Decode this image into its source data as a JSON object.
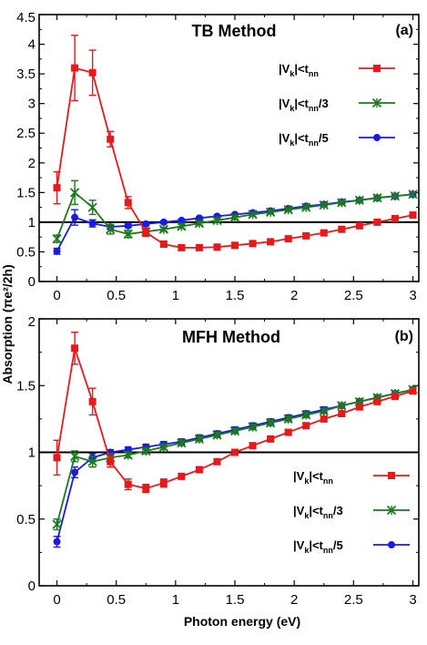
{
  "figure": {
    "ylabel": "Absorption (πe²/2h)",
    "xlabel": "Photon energy (eV)"
  },
  "chart_data": [
    {
      "type": "line",
      "panel": "(a)",
      "title": "TB Method",
      "xlim": [
        -0.15,
        3.05
      ],
      "ylim": [
        0,
        4.5
      ],
      "x_ticks": [
        0,
        0.5,
        1,
        1.5,
        2,
        2.5,
        3
      ],
      "x_tick_labels": [
        "0",
        "0.5",
        "1",
        "1.5",
        "2",
        "2.5",
        "3"
      ],
      "y_ticks": [
        0,
        0.5,
        1,
        1.5,
        2,
        2.5,
        3,
        3.5,
        4,
        4.5
      ],
      "y_tick_labels": [
        "0",
        "0.5",
        "1",
        "1.5",
        "2",
        "2.5",
        "3",
        "3.5",
        "4",
        "4.5"
      ],
      "reference_line": 1,
      "legend_position": "upper-right",
      "series": [
        {
          "name": "|V_k|<t_nn",
          "legend": {
            "main": "|V",
            "sub1": "k",
            "mid": "|<t",
            "sub2": "nn",
            "tail": ""
          },
          "color": "#e8191b",
          "marker": "square",
          "x": [
            0,
            0.15,
            0.3,
            0.45,
            0.6,
            0.75,
            0.9,
            1.05,
            1.2,
            1.35,
            1.5,
            1.65,
            1.8,
            1.95,
            2.1,
            2.25,
            2.4,
            2.55,
            2.7,
            2.85,
            3.0
          ],
          "y": [
            1.58,
            3.6,
            3.52,
            2.4,
            1.33,
            0.83,
            0.63,
            0.57,
            0.57,
            0.58,
            0.61,
            0.64,
            0.67,
            0.72,
            0.77,
            0.82,
            0.88,
            0.94,
            1.0,
            1.06,
            1.12
          ],
          "err": [
            0.27,
            0.55,
            0.38,
            0.13,
            0.1,
            0.07,
            0.05,
            0.04,
            0.04,
            0.04,
            0.04,
            0.04,
            0.04,
            0.04,
            0.04,
            0.04,
            0.04,
            0.04,
            0.04,
            0.04,
            0.04
          ]
        },
        {
          "name": "|V_k|<t_nn/3",
          "legend": {
            "main": "|V",
            "sub1": "k",
            "mid": "|<t",
            "sub2": "nn",
            "tail": "/3"
          },
          "color": "#1c7a1c",
          "marker": "x",
          "x": [
            0,
            0.15,
            0.3,
            0.45,
            0.6,
            0.75,
            0.9,
            1.05,
            1.2,
            1.35,
            1.5,
            1.65,
            1.8,
            1.95,
            2.1,
            2.25,
            2.4,
            2.55,
            2.7,
            2.85,
            3.0
          ],
          "y": [
            0.72,
            1.5,
            1.25,
            0.88,
            0.8,
            0.84,
            0.88,
            0.93,
            0.98,
            1.03,
            1.08,
            1.13,
            1.17,
            1.21,
            1.25,
            1.29,
            1.33,
            1.37,
            1.41,
            1.44,
            1.47
          ],
          "err": [
            0.06,
            0.2,
            0.12,
            0.08,
            0.06,
            0.04,
            0.03,
            0.03,
            0.03,
            0.03,
            0.03,
            0.03,
            0.03,
            0.03,
            0.03,
            0.03,
            0.03,
            0.03,
            0.03,
            0.03,
            0.03
          ]
        },
        {
          "name": "|V_k|<t_nn/5",
          "legend": {
            "main": "|V",
            "sub1": "k",
            "mid": "|<t",
            "sub2": "nn",
            "tail": "/5"
          },
          "color": "#1a1ae6",
          "marker": "circle",
          "x": [
            0,
            0.15,
            0.3,
            0.45,
            0.6,
            0.75,
            0.9,
            1.05,
            1.2,
            1.35,
            1.5,
            1.65,
            1.8,
            1.95,
            2.1,
            2.25,
            2.4,
            2.55,
            2.7,
            2.85,
            3.0
          ],
          "y": [
            0.51,
            1.08,
            0.98,
            0.92,
            0.94,
            0.97,
            1.0,
            1.03,
            1.07,
            1.1,
            1.13,
            1.16,
            1.19,
            1.23,
            1.27,
            1.3,
            1.34,
            1.37,
            1.41,
            1.44,
            1.47
          ],
          "err": [
            0.05,
            0.13,
            0.06,
            0.04,
            0.03,
            0.03,
            0.02,
            0.02,
            0.02,
            0.02,
            0.02,
            0.02,
            0.02,
            0.02,
            0.02,
            0.02,
            0.02,
            0.02,
            0.02,
            0.02,
            0.02
          ]
        }
      ]
    },
    {
      "type": "line",
      "panel": "(b)",
      "title": "MFH Method",
      "xlim": [
        -0.15,
        3.05
      ],
      "ylim": [
        0,
        2
      ],
      "x_ticks": [
        0,
        0.5,
        1,
        1.5,
        2,
        2.5,
        3
      ],
      "x_tick_labels": [
        "0",
        "0.5",
        "1",
        "1.5",
        "2",
        "2.5",
        "3"
      ],
      "y_ticks": [
        0,
        0.5,
        1,
        1.5,
        2
      ],
      "y_tick_labels": [
        "0",
        "0.5",
        "1",
        "1.5",
        "2"
      ],
      "reference_line": 1,
      "legend_position": "lower-right",
      "series": [
        {
          "name": "|V_k|<t_nn",
          "legend": {
            "main": "|V",
            "sub1": "k",
            "mid": "|<t",
            "sub2": "nn",
            "tail": ""
          },
          "color": "#e8191b",
          "marker": "square",
          "x": [
            0,
            0.15,
            0.3,
            0.45,
            0.6,
            0.75,
            0.9,
            1.05,
            1.2,
            1.35,
            1.5,
            1.65,
            1.8,
            1.95,
            2.1,
            2.25,
            2.4,
            2.55,
            2.7,
            2.85,
            3.0
          ],
          "y": [
            0.96,
            1.78,
            1.38,
            0.93,
            0.76,
            0.73,
            0.77,
            0.82,
            0.87,
            0.93,
            1.0,
            1.05,
            1.1,
            1.15,
            1.2,
            1.25,
            1.29,
            1.34,
            1.38,
            1.42,
            1.46
          ],
          "err": [
            0.13,
            0.12,
            0.1,
            0.04,
            0.04,
            0.03,
            0.03,
            0.02,
            0.02,
            0.02,
            0.02,
            0.02,
            0.02,
            0.02,
            0.02,
            0.02,
            0.02,
            0.02,
            0.02,
            0.02,
            0.02
          ]
        },
        {
          "name": "|V_k|<t_nn/3",
          "legend": {
            "main": "|V",
            "sub1": "k",
            "mid": "|<t",
            "sub2": "nn",
            "tail": "/3"
          },
          "color": "#1c7a1c",
          "marker": "x",
          "x": [
            0,
            0.15,
            0.3,
            0.45,
            0.6,
            0.75,
            0.9,
            1.05,
            1.2,
            1.35,
            1.5,
            1.65,
            1.8,
            1.95,
            2.1,
            2.25,
            2.4,
            2.55,
            2.7,
            2.85,
            3.0
          ],
          "y": [
            0.46,
            0.97,
            0.93,
            0.96,
            0.98,
            1.01,
            1.04,
            1.07,
            1.1,
            1.13,
            1.16,
            1.19,
            1.22,
            1.25,
            1.28,
            1.31,
            1.35,
            1.38,
            1.41,
            1.44,
            1.47
          ],
          "err": [
            0.04,
            0.04,
            0.04,
            0.03,
            0.02,
            0.02,
            0.02,
            0.02,
            0.02,
            0.02,
            0.02,
            0.02,
            0.02,
            0.02,
            0.02,
            0.02,
            0.02,
            0.02,
            0.02,
            0.02,
            0.02
          ]
        },
        {
          "name": "|V_k|<t_nn/5",
          "legend": {
            "main": "|V",
            "sub1": "k",
            "mid": "|<t",
            "sub2": "nn",
            "tail": "/5"
          },
          "color": "#1a1ae6",
          "marker": "circle",
          "x": [
            0,
            0.15,
            0.3,
            0.45,
            0.6,
            0.75,
            0.9,
            1.05,
            1.2,
            1.35,
            1.5,
            1.65,
            1.8,
            1.95,
            2.1,
            2.25,
            2.4,
            2.55,
            2.7,
            2.85,
            3.0
          ],
          "y": [
            0.33,
            0.85,
            0.96,
            1.0,
            1.02,
            1.04,
            1.06,
            1.08,
            1.11,
            1.14,
            1.17,
            1.2,
            1.23,
            1.26,
            1.29,
            1.32,
            1.35,
            1.38,
            1.41,
            1.44,
            1.47
          ],
          "err": [
            0.04,
            0.04,
            0.03,
            0.02,
            0.02,
            0.02,
            0.02,
            0.02,
            0.02,
            0.02,
            0.02,
            0.02,
            0.02,
            0.02,
            0.02,
            0.02,
            0.02,
            0.02,
            0.02,
            0.02,
            0.02
          ]
        }
      ]
    }
  ]
}
